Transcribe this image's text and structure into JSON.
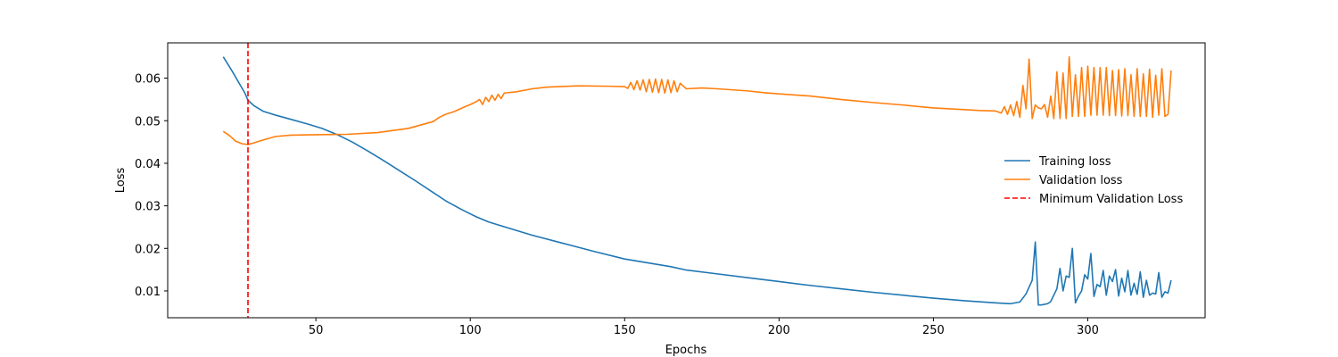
{
  "chart_data": {
    "type": "line",
    "title": "",
    "xlabel": "Epochs",
    "ylabel": "Loss",
    "xlim": [
      2,
      338
    ],
    "ylim": [
      0.0037,
      0.0683
    ],
    "x_ticks": [
      50,
      100,
      150,
      200,
      250,
      300
    ],
    "x_tick_labels": [
      "50",
      "100",
      "150",
      "200",
      "250",
      "300"
    ],
    "y_ticks": [
      0.01,
      0.02,
      0.03,
      0.04,
      0.05,
      0.06
    ],
    "y_tick_labels": [
      "0.01",
      "0.02",
      "0.03",
      "0.04",
      "0.05",
      "0.06"
    ],
    "grid": false,
    "legend_position": "center-right",
    "series": [
      {
        "name": "Training loss",
        "color": "#1f77b4",
        "style": "solid",
        "points": [
          [
            20,
            0.065
          ],
          [
            23,
            0.0615
          ],
          [
            25,
            0.059
          ],
          [
            27,
            0.0565
          ],
          [
            28,
            0.0548
          ],
          [
            30,
            0.0535
          ],
          [
            33,
            0.0522
          ],
          [
            37,
            0.0513
          ],
          [
            42,
            0.0503
          ],
          [
            47,
            0.0493
          ],
          [
            52,
            0.0482
          ],
          [
            57,
            0.0467
          ],
          [
            62,
            0.0449
          ],
          [
            67,
            0.0428
          ],
          [
            72,
            0.0406
          ],
          [
            77,
            0.0383
          ],
          [
            82,
            0.036
          ],
          [
            87,
            0.0336
          ],
          [
            92,
            0.0312
          ],
          [
            97,
            0.0292
          ],
          [
            102,
            0.0274
          ],
          [
            106,
            0.0262
          ],
          [
            110,
            0.0253
          ],
          [
            115,
            0.0242
          ],
          [
            120,
            0.0231
          ],
          [
            130,
            0.0212
          ],
          [
            140,
            0.0193
          ],
          [
            150,
            0.0175
          ],
          [
            160,
            0.0163
          ],
          [
            165,
            0.0157
          ],
          [
            170,
            0.0149
          ],
          [
            180,
            0.014
          ],
          [
            190,
            0.0131
          ],
          [
            200,
            0.0122
          ],
          [
            210,
            0.0113
          ],
          [
            220,
            0.0105
          ],
          [
            230,
            0.0097
          ],
          [
            240,
            0.009
          ],
          [
            250,
            0.0083
          ],
          [
            260,
            0.0077
          ],
          [
            270,
            0.0072
          ],
          [
            275,
            0.007
          ],
          [
            278,
            0.0074
          ],
          [
            280,
            0.0093
          ],
          [
            282,
            0.0125
          ],
          [
            283,
            0.0215
          ],
          [
            284,
            0.0067
          ],
          [
            285,
            0.0067
          ],
          [
            287,
            0.007
          ],
          [
            288,
            0.0075
          ],
          [
            290,
            0.0105
          ],
          [
            291,
            0.0153
          ],
          [
            292,
            0.01
          ],
          [
            293,
            0.0135
          ],
          [
            294,
            0.0132
          ],
          [
            295,
            0.02
          ],
          [
            296,
            0.0072
          ],
          [
            297,
            0.0088
          ],
          [
            298,
            0.01
          ],
          [
            299,
            0.0138
          ],
          [
            300,
            0.0128
          ],
          [
            301,
            0.0188
          ],
          [
            302,
            0.0087
          ],
          [
            303,
            0.0115
          ],
          [
            304,
            0.011
          ],
          [
            305,
            0.0148
          ],
          [
            306,
            0.009
          ],
          [
            307,
            0.0135
          ],
          [
            308,
            0.0122
          ],
          [
            309,
            0.015
          ],
          [
            310,
            0.0088
          ],
          [
            311,
            0.013
          ],
          [
            312,
            0.0098
          ],
          [
            313,
            0.0148
          ],
          [
            314,
            0.009
          ],
          [
            315,
            0.0118
          ],
          [
            316,
            0.0092
          ],
          [
            317,
            0.0145
          ],
          [
            318,
            0.0085
          ],
          [
            319,
            0.0125
          ],
          [
            320,
            0.009
          ],
          [
            321,
            0.0095
          ],
          [
            322,
            0.0093
          ],
          [
            323,
            0.0143
          ],
          [
            324,
            0.0085
          ],
          [
            325,
            0.0098
          ],
          [
            326,
            0.0095
          ],
          [
            327,
            0.0125
          ]
        ]
      },
      {
        "name": "Validation loss",
        "color": "#ff7f0e",
        "style": "solid",
        "points": [
          [
            20,
            0.0475
          ],
          [
            22,
            0.0465
          ],
          [
            24,
            0.0452
          ],
          [
            26,
            0.0446
          ],
          [
            28,
            0.0444
          ],
          [
            30,
            0.0448
          ],
          [
            33,
            0.0455
          ],
          [
            37,
            0.0463
          ],
          [
            42,
            0.0466
          ],
          [
            50,
            0.0467
          ],
          [
            60,
            0.0468
          ],
          [
            70,
            0.0472
          ],
          [
            80,
            0.0482
          ],
          [
            88,
            0.0498
          ],
          [
            90,
            0.0508
          ],
          [
            92,
            0.0515
          ],
          [
            95,
            0.0522
          ],
          [
            98,
            0.0532
          ],
          [
            100,
            0.0538
          ],
          [
            102,
            0.0545
          ],
          [
            103,
            0.055
          ],
          [
            104,
            0.0538
          ],
          [
            105,
            0.0555
          ],
          [
            106,
            0.0545
          ],
          [
            107,
            0.056
          ],
          [
            108,
            0.0548
          ],
          [
            109,
            0.0562
          ],
          [
            110,
            0.0552
          ],
          [
            111,
            0.0565
          ],
          [
            115,
            0.0568
          ],
          [
            120,
            0.0575
          ],
          [
            125,
            0.0579
          ],
          [
            135,
            0.0582
          ],
          [
            145,
            0.0581
          ],
          [
            150,
            0.058
          ],
          [
            151,
            0.0576
          ],
          [
            152,
            0.059
          ],
          [
            153,
            0.0573
          ],
          [
            154,
            0.0594
          ],
          [
            155,
            0.0572
          ],
          [
            156,
            0.0596
          ],
          [
            157,
            0.0568
          ],
          [
            158,
            0.0597
          ],
          [
            159,
            0.0567
          ],
          [
            160,
            0.0598
          ],
          [
            161,
            0.0566
          ],
          [
            162,
            0.0597
          ],
          [
            163,
            0.0565
          ],
          [
            164,
            0.0596
          ],
          [
            165,
            0.0566
          ],
          [
            166,
            0.0594
          ],
          [
            167,
            0.0568
          ],
          [
            168,
            0.0588
          ],
          [
            170,
            0.0575
          ],
          [
            175,
            0.0577
          ],
          [
            180,
            0.0575
          ],
          [
            190,
            0.057
          ],
          [
            195,
            0.0566
          ],
          [
            200,
            0.0563
          ],
          [
            210,
            0.0558
          ],
          [
            220,
            0.055
          ],
          [
            230,
            0.0543
          ],
          [
            240,
            0.0537
          ],
          [
            250,
            0.053
          ],
          [
            260,
            0.0526
          ],
          [
            265,
            0.0524
          ],
          [
            270,
            0.0523
          ],
          [
            272,
            0.0518
          ],
          [
            273,
            0.0533
          ],
          [
            274,
            0.0515
          ],
          [
            275,
            0.0537
          ],
          [
            276,
            0.0512
          ],
          [
            277,
            0.0545
          ],
          [
            278,
            0.0508
          ],
          [
            279,
            0.0583
          ],
          [
            280,
            0.0528
          ],
          [
            281,
            0.0645
          ],
          [
            282,
            0.0505
          ],
          [
            283,
            0.0537
          ],
          [
            284,
            0.053
          ],
          [
            285,
            0.0528
          ],
          [
            286,
            0.0538
          ],
          [
            287,
            0.0508
          ],
          [
            288,
            0.0558
          ],
          [
            289,
            0.0505
          ],
          [
            290,
            0.0615
          ],
          [
            291,
            0.0505
          ],
          [
            292,
            0.0612
          ],
          [
            293,
            0.0505
          ],
          [
            294,
            0.065
          ],
          [
            295,
            0.051
          ],
          [
            296,
            0.0608
          ],
          [
            297,
            0.051
          ],
          [
            298,
            0.0625
          ],
          [
            299,
            0.051
          ],
          [
            300,
            0.0628
          ],
          [
            301,
            0.0513
          ],
          [
            302,
            0.0625
          ],
          [
            303,
            0.0513
          ],
          [
            304,
            0.0625
          ],
          [
            305,
            0.0513
          ],
          [
            306,
            0.0625
          ],
          [
            307,
            0.0512
          ],
          [
            308,
            0.0618
          ],
          [
            309,
            0.0512
          ],
          [
            310,
            0.062
          ],
          [
            311,
            0.0511
          ],
          [
            312,
            0.0622
          ],
          [
            313,
            0.0512
          ],
          [
            314,
            0.0608
          ],
          [
            315,
            0.051
          ],
          [
            316,
            0.0622
          ],
          [
            317,
            0.051
          ],
          [
            318,
            0.061
          ],
          [
            319,
            0.051
          ],
          [
            320,
            0.0621
          ],
          [
            321,
            0.0508
          ],
          [
            322,
            0.0607
          ],
          [
            323,
            0.0513
          ],
          [
            324,
            0.0622
          ],
          [
            325,
            0.051
          ],
          [
            326,
            0.0515
          ],
          [
            327,
            0.0618
          ]
        ]
      },
      {
        "name": "Minimum Validation Loss",
        "color": "#ff0000",
        "style": "dashed",
        "vline_x": 28
      }
    ]
  }
}
